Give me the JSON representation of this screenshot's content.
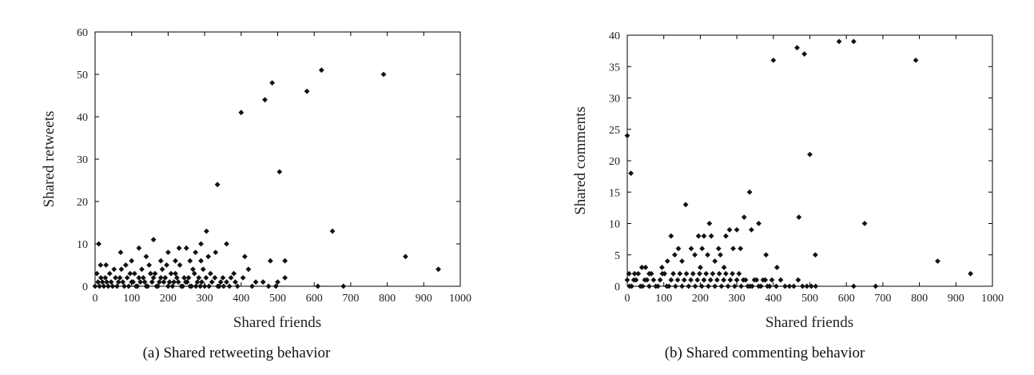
{
  "chart_data": [
    {
      "type": "scatter",
      "caption": "(a) Shared retweeting behavior",
      "xlabel": "Shared friends",
      "ylabel": "Shared retweets",
      "xlim": [
        0,
        1000
      ],
      "ylim": [
        0,
        60
      ],
      "xticks": [
        0,
        100,
        200,
        300,
        400,
        500,
        600,
        700,
        800,
        900,
        1000
      ],
      "yticks": [
        0,
        10,
        20,
        30,
        40,
        50,
        60
      ],
      "marker": "diamond",
      "points": [
        [
          620,
          51
        ],
        [
          790,
          50
        ],
        [
          485,
          48
        ],
        [
          580,
          46
        ],
        [
          465,
          44
        ],
        [
          400,
          41
        ],
        [
          505,
          27
        ],
        [
          335,
          24
        ],
        [
          650,
          13
        ],
        [
          305,
          13
        ],
        [
          160,
          11
        ],
        [
          10,
          10
        ],
        [
          360,
          10
        ],
        [
          290,
          10
        ],
        [
          850,
          7
        ],
        [
          940,
          4
        ],
        [
          520,
          6
        ],
        [
          480,
          6
        ],
        [
          410,
          7
        ],
        [
          330,
          8
        ],
        [
          250,
          9
        ],
        [
          230,
          9
        ],
        [
          120,
          9
        ],
        [
          70,
          8
        ],
        [
          200,
          8
        ],
        [
          275,
          8
        ],
        [
          310,
          7
        ],
        [
          15,
          5
        ],
        [
          30,
          5
        ],
        [
          100,
          6
        ],
        [
          140,
          7
        ],
        [
          180,
          6
        ],
        [
          220,
          6
        ],
        [
          260,
          6
        ],
        [
          290,
          6
        ],
        [
          420,
          4
        ],
        [
          380,
          3
        ],
        [
          350,
          2
        ],
        [
          440,
          1
        ],
        [
          460,
          1
        ],
        [
          500,
          1
        ],
        [
          520,
          2
        ],
        [
          610,
          0
        ],
        [
          680,
          0
        ],
        [
          390,
          0
        ],
        [
          430,
          0
        ],
        [
          475,
          0
        ],
        [
          495,
          0
        ],
        [
          0,
          0
        ],
        [
          8,
          1
        ],
        [
          16,
          2
        ],
        [
          24,
          0
        ],
        [
          32,
          1
        ],
        [
          40,
          3
        ],
        [
          48,
          0
        ],
        [
          56,
          2
        ],
        [
          64,
          1
        ],
        [
          72,
          4
        ],
        [
          80,
          0
        ],
        [
          88,
          2
        ],
        [
          96,
          3
        ],
        [
          104,
          1
        ],
        [
          112,
          0
        ],
        [
          120,
          2
        ],
        [
          128,
          4
        ],
        [
          136,
          1
        ],
        [
          144,
          0
        ],
        [
          152,
          3
        ],
        [
          160,
          2
        ],
        [
          168,
          0
        ],
        [
          176,
          1
        ],
        [
          184,
          4
        ],
        [
          192,
          2
        ],
        [
          200,
          0
        ],
        [
          208,
          3
        ],
        [
          216,
          1
        ],
        [
          224,
          2
        ],
        [
          232,
          5
        ],
        [
          240,
          0
        ],
        [
          248,
          1
        ],
        [
          256,
          2
        ],
        [
          264,
          0
        ],
        [
          272,
          3
        ],
        [
          280,
          1
        ],
        [
          288,
          0
        ],
        [
          296,
          4
        ],
        [
          304,
          2
        ],
        [
          312,
          0
        ],
        [
          320,
          1
        ],
        [
          328,
          2
        ],
        [
          336,
          0
        ],
        [
          344,
          1
        ],
        [
          352,
          0
        ],
        [
          360,
          1
        ],
        [
          368,
          0
        ],
        [
          5,
          3
        ],
        [
          12,
          0
        ],
        [
          20,
          1
        ],
        [
          28,
          2
        ],
        [
          36,
          0
        ],
        [
          44,
          1
        ],
        [
          52,
          4
        ],
        [
          60,
          0
        ],
        [
          68,
          2
        ],
        [
          76,
          1
        ],
        [
          84,
          5
        ],
        [
          92,
          0
        ],
        [
          100,
          1
        ],
        [
          108,
          3
        ],
        [
          116,
          0
        ],
        [
          124,
          1
        ],
        [
          132,
          2
        ],
        [
          140,
          0
        ],
        [
          148,
          5
        ],
        [
          156,
          1
        ],
        [
          164,
          3
        ],
        [
          172,
          0
        ],
        [
          180,
          2
        ],
        [
          188,
          1
        ],
        [
          196,
          5
        ],
        [
          204,
          1
        ],
        [
          212,
          0
        ],
        [
          220,
          3
        ],
        [
          228,
          1
        ],
        [
          236,
          0
        ],
        [
          244,
          2
        ],
        [
          252,
          1
        ],
        [
          260,
          0
        ],
        [
          268,
          4
        ],
        [
          276,
          0
        ],
        [
          284,
          2
        ],
        [
          292,
          1
        ],
        [
          300,
          0
        ],
        [
          316,
          3
        ],
        [
          340,
          0
        ],
        [
          372,
          2
        ],
        [
          384,
          1
        ],
        [
          405,
          2
        ]
      ]
    },
    {
      "type": "scatter",
      "caption": "(b) Shared commenting behavior",
      "xlabel": "Shared friends",
      "ylabel": "Shared comments",
      "xlim": [
        0,
        1000
      ],
      "ylim": [
        0,
        40
      ],
      "xticks": [
        0,
        100,
        200,
        300,
        400,
        500,
        600,
        700,
        800,
        900,
        1000
      ],
      "yticks": [
        0,
        5,
        10,
        15,
        20,
        25,
        30,
        35,
        40
      ],
      "marker": "diamond",
      "points": [
        [
          580,
          39
        ],
        [
          620,
          39
        ],
        [
          465,
          38
        ],
        [
          485,
          37
        ],
        [
          400,
          36
        ],
        [
          790,
          36
        ],
        [
          0,
          24
        ],
        [
          500,
          21
        ],
        [
          10,
          18
        ],
        [
          335,
          15
        ],
        [
          160,
          13
        ],
        [
          470,
          11
        ],
        [
          320,
          11
        ],
        [
          225,
          10
        ],
        [
          650,
          10
        ],
        [
          360,
          10
        ],
        [
          300,
          9
        ],
        [
          340,
          9
        ],
        [
          280,
          9
        ],
        [
          120,
          8
        ],
        [
          195,
          8
        ],
        [
          210,
          8
        ],
        [
          230,
          8
        ],
        [
          270,
          8
        ],
        [
          515,
          5
        ],
        [
          850,
          4
        ],
        [
          940,
          2
        ],
        [
          380,
          5
        ],
        [
          410,
          3
        ],
        [
          310,
          6
        ],
        [
          290,
          6
        ],
        [
          250,
          6
        ],
        [
          205,
          6
        ],
        [
          175,
          6
        ],
        [
          140,
          6
        ],
        [
          130,
          5
        ],
        [
          255,
          5
        ],
        [
          220,
          5
        ],
        [
          185,
          5
        ],
        [
          150,
          4
        ],
        [
          110,
          4
        ],
        [
          240,
          4
        ],
        [
          265,
          3
        ],
        [
          200,
          3
        ],
        [
          95,
          3
        ],
        [
          50,
          3
        ],
        [
          40,
          3
        ],
        [
          60,
          2
        ],
        [
          20,
          2
        ],
        [
          5,
          2
        ],
        [
          0,
          1
        ],
        [
          12,
          0
        ],
        [
          24,
          1
        ],
        [
          36,
          0
        ],
        [
          48,
          1
        ],
        [
          60,
          0
        ],
        [
          72,
          1
        ],
        [
          84,
          0
        ],
        [
          96,
          2
        ],
        [
          108,
          0
        ],
        [
          120,
          1
        ],
        [
          132,
          0
        ],
        [
          144,
          2
        ],
        [
          156,
          1
        ],
        [
          168,
          0
        ],
        [
          180,
          2
        ],
        [
          192,
          1
        ],
        [
          204,
          0
        ],
        [
          216,
          2
        ],
        [
          228,
          1
        ],
        [
          240,
          0
        ],
        [
          252,
          2
        ],
        [
          264,
          1
        ],
        [
          276,
          0
        ],
        [
          288,
          2
        ],
        [
          300,
          1
        ],
        [
          312,
          0
        ],
        [
          324,
          1
        ],
        [
          336,
          0
        ],
        [
          348,
          1
        ],
        [
          360,
          0
        ],
        [
          372,
          1
        ],
        [
          384,
          0
        ],
        [
          396,
          1
        ],
        [
          408,
          0
        ],
        [
          420,
          1
        ],
        [
          432,
          0
        ],
        [
          444,
          0
        ],
        [
          456,
          0
        ],
        [
          468,
          1
        ],
        [
          480,
          0
        ],
        [
          492,
          0
        ],
        [
          504,
          0
        ],
        [
          516,
          0
        ],
        [
          620,
          0
        ],
        [
          680,
          0
        ],
        [
          6,
          0
        ],
        [
          18,
          1
        ],
        [
          30,
          2
        ],
        [
          42,
          0
        ],
        [
          54,
          1
        ],
        [
          66,
          2
        ],
        [
          78,
          0
        ],
        [
          90,
          1
        ],
        [
          102,
          2
        ],
        [
          114,
          0
        ],
        [
          126,
          2
        ],
        [
          138,
          1
        ],
        [
          150,
          0
        ],
        [
          162,
          2
        ],
        [
          174,
          1
        ],
        [
          186,
          0
        ],
        [
          198,
          2
        ],
        [
          210,
          1
        ],
        [
          222,
          0
        ],
        [
          234,
          2
        ],
        [
          246,
          1
        ],
        [
          258,
          0
        ],
        [
          270,
          2
        ],
        [
          282,
          1
        ],
        [
          294,
          0
        ],
        [
          306,
          2
        ],
        [
          318,
          1
        ],
        [
          330,
          0
        ],
        [
          342,
          0
        ],
        [
          354,
          1
        ],
        [
          366,
          0
        ],
        [
          378,
          1
        ],
        [
          390,
          0
        ]
      ]
    }
  ]
}
